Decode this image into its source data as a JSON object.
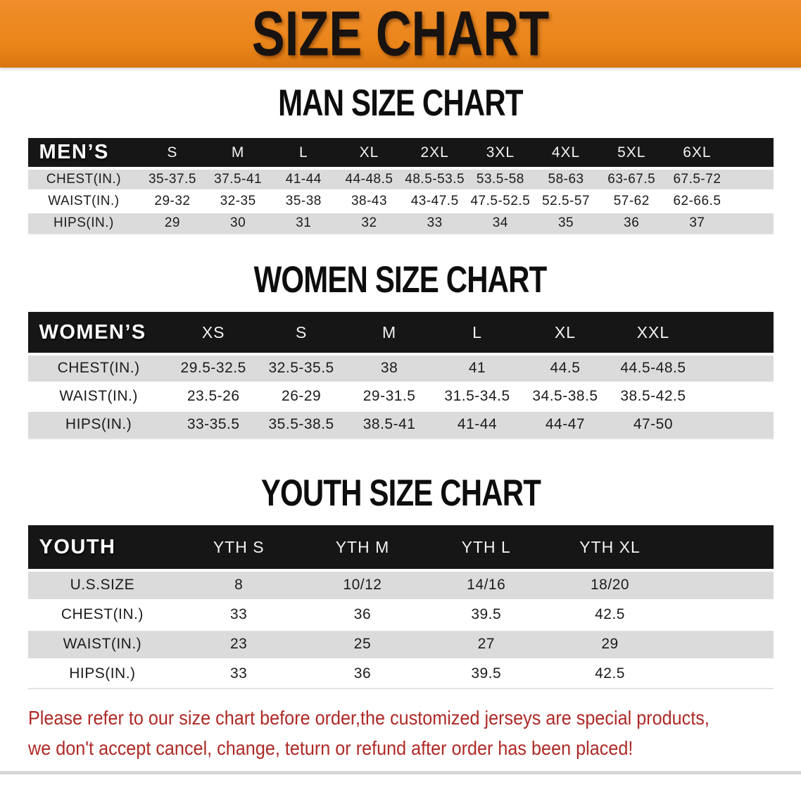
{
  "banner": {
    "title": "SIZE CHART"
  },
  "colors": {
    "banner_bg": "#E98418",
    "header_bar": "#161616",
    "row_shade": "#DBDBDB",
    "notice_red": "#AE2A26"
  },
  "sections": [
    {
      "heading": "MAN SIZE CHART",
      "header_label": "MEN’S",
      "sizes": [
        "S",
        "M",
        "L",
        "XL",
        "2XL",
        "3XL",
        "4XL",
        "5XL",
        "6XL"
      ],
      "rows": [
        {
          "label": "CHEST(IN.)",
          "values": [
            "35-37.5",
            "37.5-41",
            "41-44",
            "44-48.5",
            "48.5-53.5",
            "53.5-58",
            "58-63",
            "63-67.5",
            "67.5-72"
          ]
        },
        {
          "label": "WAIST(IN.)",
          "values": [
            "29-32",
            "32-35",
            "35-38",
            "38-43",
            "43-47.5",
            "47.5-52.5",
            "52.5-57",
            "57-62",
            "62-66.5"
          ]
        },
        {
          "label": "HIPS(IN.)",
          "values": [
            "29",
            "30",
            "31",
            "32",
            "33",
            "34",
            "35",
            "36",
            "37"
          ]
        }
      ]
    },
    {
      "heading": "WOMEN SIZE CHART",
      "header_label": "WOMEN’S",
      "sizes": [
        "XS",
        "S",
        "M",
        "L",
        "XL",
        "XXL"
      ],
      "rows": [
        {
          "label": "CHEST(IN.)",
          "values": [
            "29.5-32.5",
            "32.5-35.5",
            "38",
            "41",
            "44.5",
            "44.5-48.5"
          ]
        },
        {
          "label": "WAIST(IN.)",
          "values": [
            "23.5-26",
            "26-29",
            "29-31.5",
            "31.5-34.5",
            "34.5-38.5",
            "38.5-42.5"
          ]
        },
        {
          "label": "HIPS(IN.)",
          "values": [
            "33-35.5",
            "35.5-38.5",
            "38.5-41",
            "41-44",
            "44-47",
            "47-50"
          ]
        }
      ]
    },
    {
      "heading": "YOUTH SIZE CHART",
      "header_label": "YOUTH",
      "sizes": [
        "YTH S",
        "YTH M",
        "YTH L",
        "YTH XL"
      ],
      "rows": [
        {
          "label": "U.S.SIZE",
          "values": [
            "8",
            "10/12",
            "14/16",
            "18/20"
          ]
        },
        {
          "label": "CHEST(IN.)",
          "values": [
            "33",
            "36",
            "39.5",
            "42.5"
          ]
        },
        {
          "label": "WAIST(IN.)",
          "values": [
            "23",
            "25",
            "27",
            "29"
          ]
        },
        {
          "label": "HIPS(IN.)",
          "values": [
            "33",
            "36",
            "39.5",
            "42.5"
          ]
        }
      ]
    }
  ],
  "footer": {
    "line1": "Please refer to our size chart before order,the customized jerseys are special products,",
    "line2": "we don't accept cancel, change, teturn or refund after order has been placed!"
  }
}
